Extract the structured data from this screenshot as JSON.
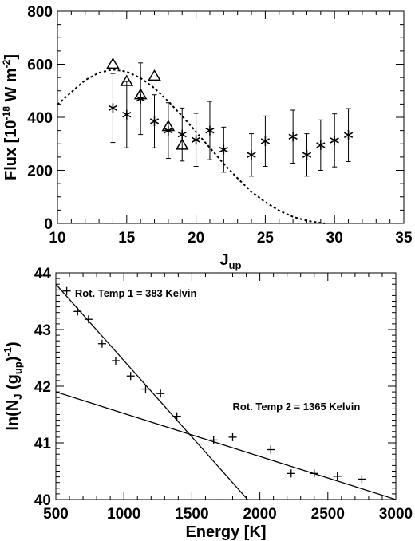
{
  "chart_data": [
    {
      "type": "scatter",
      "title": "",
      "xlabel": "J",
      "xlabel_sub": "up",
      "ylabel_parts": [
        "Flux [10",
        "-18",
        " W m",
        "-2",
        "]"
      ],
      "xlim": [
        10,
        35
      ],
      "ylim": [
        0,
        800
      ],
      "xticks": [
        10,
        15,
        20,
        25,
        30,
        35
      ],
      "yticks": [
        0,
        200,
        400,
        600,
        800
      ],
      "series": [
        {
          "marker": "asterisk",
          "with_errorbars": true,
          "points": [
            {
              "x": 14,
              "y": 435,
              "err": 130
            },
            {
              "x": 15,
              "y": 410,
              "err": 125
            },
            {
              "x": 16,
              "y": 470,
              "err": 135
            },
            {
              "x": 17,
              "y": 385,
              "err": 100
            },
            {
              "x": 18,
              "y": 350,
              "err": 105
            },
            {
              "x": 19,
              "y": 335,
              "err": 100
            },
            {
              "x": 20,
              "y": 315,
              "err": 100
            },
            {
              "x": 21,
              "y": 350,
              "err": 110
            },
            {
              "x": 22,
              "y": 278,
              "err": 85
            },
            {
              "x": 24,
              "y": 258,
              "err": 80
            },
            {
              "x": 25,
              "y": 310,
              "err": 95
            },
            {
              "x": 27,
              "y": 327,
              "err": 100
            },
            {
              "x": 28,
              "y": 258,
              "err": 80
            },
            {
              "x": 29,
              "y": 295,
              "err": 95
            },
            {
              "x": 30,
              "y": 313,
              "err": 100
            },
            {
              "x": 31,
              "y": 333,
              "err": 100
            }
          ]
        },
        {
          "marker": "triangle",
          "points": [
            {
              "x": 14,
              "y": 600
            },
            {
              "x": 15,
              "y": 535
            },
            {
              "x": 16,
              "y": 485
            },
            {
              "x": 17,
              "y": 555
            },
            {
              "x": 18,
              "y": 365
            },
            {
              "x": 19,
              "y": 295
            }
          ]
        },
        {
          "style": "dashed-curve",
          "points": [
            [
              10,
              448
            ],
            [
              11,
              495
            ],
            [
              12,
              540
            ],
            [
              13,
              568
            ],
            [
              14,
              580
            ],
            [
              15,
              572
            ],
            [
              16,
              548
            ],
            [
              17,
              510
            ],
            [
              18,
              460
            ],
            [
              19,
              405
            ],
            [
              20,
              345
            ],
            [
              21,
              285
            ],
            [
              22,
              225
            ],
            [
              23,
              170
            ],
            [
              24,
              120
            ],
            [
              25,
              80
            ],
            [
              26,
              48
            ],
            [
              27,
              25
            ],
            [
              28,
              10
            ],
            [
              29,
              2
            ],
            [
              29.3,
              0
            ]
          ]
        }
      ]
    },
    {
      "type": "scatter",
      "title": "",
      "xlabel": "Energy [K]",
      "ylabel_parts": [
        "ln(N",
        "J",
        " (g",
        "up",
        ")",
        "-1",
        ")"
      ],
      "xlim": [
        500,
        3000
      ],
      "ylim": [
        40,
        44
      ],
      "xticks": [
        500,
        1000,
        1500,
        2000,
        2500,
        3000
      ],
      "yticks": [
        40,
        41,
        42,
        43,
        44
      ],
      "annotations": [
        {
          "text": "Rot. Temp 1 = 383 Kelvin",
          "x": 640,
          "y": 43.58
        },
        {
          "text": "Rot. Temp 2 = 1365 Kelvin",
          "x": 1800,
          "y": 41.58
        }
      ],
      "series": [
        {
          "marker": "plus",
          "points": [
            [
              580,
              43.68
            ],
            [
              660,
              43.32
            ],
            [
              740,
              43.18
            ],
            [
              840,
              42.75
            ],
            [
              940,
              42.45
            ],
            [
              1050,
              42.18
            ],
            [
              1160,
              41.95
            ],
            [
              1270,
              41.87
            ],
            [
              1390,
              41.47
            ],
            [
              1660,
              41.05
            ],
            [
              1800,
              41.1
            ],
            [
              2080,
              40.88
            ],
            [
              2230,
              40.46
            ],
            [
              2400,
              40.46
            ],
            [
              2570,
              40.41
            ],
            [
              2750,
              40.36
            ]
          ]
        },
        {
          "style": "line",
          "name": "Rot. Temp 1",
          "points": [
            [
              500,
              43.8
            ],
            [
              1910,
              40.0
            ]
          ]
        },
        {
          "style": "line",
          "name": "Rot. Temp 2",
          "points": [
            [
              500,
              41.9
            ],
            [
              3000,
              40.0
            ]
          ]
        }
      ]
    }
  ]
}
